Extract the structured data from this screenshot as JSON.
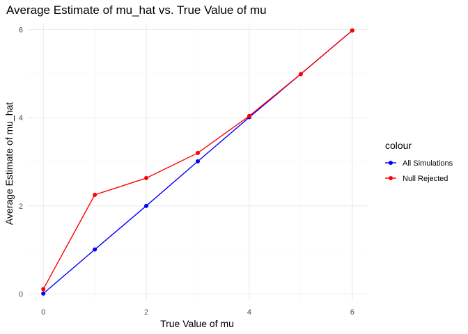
{
  "chart_data": {
    "type": "line",
    "title": "Average Estimate of mu_hat vs. True Value of mu",
    "xlabel": "True Value of mu",
    "ylabel": "Average Estimate of mu_hat",
    "xlim": [
      -0.3,
      6.3
    ],
    "ylim": [
      -0.15,
      6.15
    ],
    "xticks": [
      0,
      2,
      4,
      6
    ],
    "yticks": [
      0,
      2,
      4,
      6
    ],
    "grid": true,
    "legend": {
      "title": "colour",
      "position": "right"
    },
    "x": [
      0,
      1,
      2,
      3,
      4,
      5,
      6
    ],
    "series": [
      {
        "name": "All Simulations",
        "color": "#0000ff",
        "values": [
          0.01,
          1.01,
          2.0,
          3.01,
          4.01,
          4.99,
          5.98
        ]
      },
      {
        "name": "Null Rejected",
        "color": "#ff0000",
        "values": [
          0.11,
          2.25,
          2.63,
          3.2,
          4.04,
          4.99,
          5.98
        ]
      }
    ]
  }
}
